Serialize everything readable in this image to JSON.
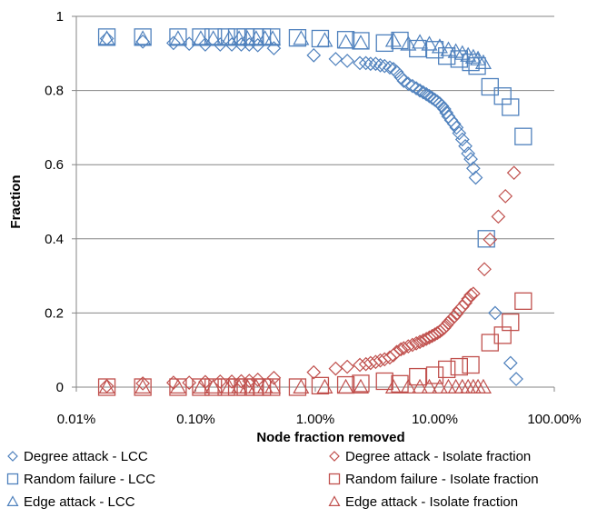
{
  "chart_data": {
    "type": "scatter",
    "xlabel": "Node fraction removed",
    "ylabel": "Fraction",
    "x_scale": "log",
    "xlim": [
      0.0001,
      1
    ],
    "ylim": [
      0,
      1
    ],
    "x_ticks": [
      0.0001,
      0.001,
      0.01,
      0.1,
      1
    ],
    "x_tick_labels": [
      "0.01%",
      "0.10%",
      "1.00%",
      "10.00%",
      "100.00%"
    ],
    "y_ticks": [
      0,
      0.2,
      0.4,
      0.6,
      0.8,
      1
    ],
    "y_tick_labels": [
      "0",
      "0.2",
      "0.4",
      "0.6",
      "0.8",
      "1"
    ],
    "grid": "horizontal",
    "legend_position": "bottom",
    "colors": {
      "lcc": "#4F81BD",
      "isolate": "#C0504D",
      "axis": "#868686",
      "grid": "#868686"
    },
    "series": [
      {
        "name": "Degree attack - LCC",
        "marker": "diamond",
        "color": "#4F81BD",
        "points": [
          [
            0.00018,
            0.94
          ],
          [
            0.00036,
            0.932
          ],
          [
            0.00065,
            0.928
          ],
          [
            0.00088,
            0.926
          ],
          [
            0.0012,
            0.924
          ],
          [
            0.0016,
            0.924
          ],
          [
            0.002,
            0.924
          ],
          [
            0.0024,
            0.924
          ],
          [
            0.0028,
            0.924
          ],
          [
            0.0033,
            0.922
          ],
          [
            0.0045,
            0.914
          ],
          [
            0.0097,
            0.895
          ],
          [
            0.0148,
            0.885
          ],
          [
            0.0185,
            0.88
          ],
          [
            0.0236,
            0.874
          ],
          [
            0.0265,
            0.874
          ],
          [
            0.029,
            0.872
          ],
          [
            0.032,
            0.872
          ],
          [
            0.035,
            0.868
          ],
          [
            0.038,
            0.866
          ],
          [
            0.042,
            0.862
          ],
          [
            0.045,
            0.858
          ],
          [
            0.048,
            0.85
          ],
          [
            0.052,
            0.836
          ],
          [
            0.055,
            0.826
          ],
          [
            0.06,
            0.818
          ],
          [
            0.065,
            0.812
          ],
          [
            0.07,
            0.806
          ],
          [
            0.075,
            0.8
          ],
          [
            0.08,
            0.795
          ],
          [
            0.085,
            0.79
          ],
          [
            0.09,
            0.785
          ],
          [
            0.095,
            0.78
          ],
          [
            0.1,
            0.775
          ],
          [
            0.105,
            0.77
          ],
          [
            0.11,
            0.765
          ],
          [
            0.115,
            0.758
          ],
          [
            0.12,
            0.75
          ],
          [
            0.125,
            0.74
          ],
          [
            0.13,
            0.73
          ],
          [
            0.137,
            0.72
          ],
          [
            0.145,
            0.71
          ],
          [
            0.152,
            0.7
          ],
          [
            0.16,
            0.685
          ],
          [
            0.17,
            0.668
          ],
          [
            0.18,
            0.65
          ],
          [
            0.19,
            0.63
          ],
          [
            0.2,
            0.615
          ],
          [
            0.21,
            0.59
          ],
          [
            0.22,
            0.565
          ],
          [
            0.32,
            0.2
          ],
          [
            0.43,
            0.065
          ],
          [
            0.48,
            0.022
          ]
        ]
      },
      {
        "name": "Random failure - LCC",
        "marker": "square",
        "color": "#4F81BD",
        "points": [
          [
            0.00018,
            0.944
          ],
          [
            0.00036,
            0.944
          ],
          [
            0.00071,
            0.944
          ],
          [
            0.0011,
            0.944
          ],
          [
            0.0014,
            0.944
          ],
          [
            0.0018,
            0.944
          ],
          [
            0.0022,
            0.944
          ],
          [
            0.0026,
            0.944
          ],
          [
            0.0031,
            0.944
          ],
          [
            0.0036,
            0.944
          ],
          [
            0.0043,
            0.944
          ],
          [
            0.0071,
            0.942
          ],
          [
            0.011,
            0.94
          ],
          [
            0.018,
            0.937
          ],
          [
            0.024,
            0.934
          ],
          [
            0.038,
            0.928
          ],
          [
            0.051,
            0.935
          ],
          [
            0.072,
            0.913
          ],
          [
            0.1,
            0.91
          ],
          [
            0.126,
            0.893
          ],
          [
            0.16,
            0.885
          ],
          [
            0.2,
            0.876
          ],
          [
            0.226,
            0.866
          ],
          [
            0.29,
            0.81
          ],
          [
            0.37,
            0.785
          ],
          [
            0.43,
            0.755
          ],
          [
            0.55,
            0.676
          ],
          [
            0.27,
            0.4
          ]
        ]
      },
      {
        "name": "Edge attack - LCC",
        "marker": "triangle",
        "color": "#4F81BD",
        "points": [
          [
            0.00018,
            0.94
          ],
          [
            0.00036,
            0.94
          ],
          [
            0.00071,
            0.94
          ],
          [
            0.0011,
            0.94
          ],
          [
            0.0014,
            0.94
          ],
          [
            0.0019,
            0.94
          ],
          [
            0.0023,
            0.94
          ],
          [
            0.0027,
            0.94
          ],
          [
            0.0032,
            0.94
          ],
          [
            0.0038,
            0.94
          ],
          [
            0.0044,
            0.94
          ],
          [
            0.0076,
            0.94
          ],
          [
            0.012,
            0.935
          ],
          [
            0.018,
            0.93
          ],
          [
            0.024,
            0.928
          ],
          [
            0.045,
            0.935
          ],
          [
            0.06,
            0.925
          ],
          [
            0.075,
            0.93
          ],
          [
            0.09,
            0.925
          ],
          [
            0.11,
            0.918
          ],
          [
            0.13,
            0.91
          ],
          [
            0.15,
            0.905
          ],
          [
            0.17,
            0.9
          ],
          [
            0.19,
            0.895
          ],
          [
            0.21,
            0.89
          ],
          [
            0.23,
            0.885
          ],
          [
            0.255,
            0.875
          ]
        ]
      },
      {
        "name": "Degree attack - Isolate fraction",
        "marker": "diamond",
        "color": "#C0504D",
        "points": [
          [
            0.00018,
            0.003
          ],
          [
            0.00036,
            0.01
          ],
          [
            0.00065,
            0.012
          ],
          [
            0.00088,
            0.012
          ],
          [
            0.0012,
            0.014
          ],
          [
            0.0016,
            0.015
          ],
          [
            0.002,
            0.015
          ],
          [
            0.0024,
            0.016
          ],
          [
            0.0028,
            0.017
          ],
          [
            0.0033,
            0.02
          ],
          [
            0.0045,
            0.025
          ],
          [
            0.0097,
            0.04
          ],
          [
            0.0148,
            0.05
          ],
          [
            0.0185,
            0.055
          ],
          [
            0.0236,
            0.06
          ],
          [
            0.0265,
            0.062
          ],
          [
            0.029,
            0.065
          ],
          [
            0.032,
            0.068
          ],
          [
            0.035,
            0.072
          ],
          [
            0.038,
            0.075
          ],
          [
            0.042,
            0.08
          ],
          [
            0.045,
            0.086
          ],
          [
            0.048,
            0.095
          ],
          [
            0.052,
            0.102
          ],
          [
            0.055,
            0.105
          ],
          [
            0.06,
            0.11
          ],
          [
            0.065,
            0.114
          ],
          [
            0.07,
            0.118
          ],
          [
            0.075,
            0.122
          ],
          [
            0.08,
            0.126
          ],
          [
            0.085,
            0.13
          ],
          [
            0.09,
            0.134
          ],
          [
            0.095,
            0.138
          ],
          [
            0.1,
            0.142
          ],
          [
            0.105,
            0.146
          ],
          [
            0.11,
            0.15
          ],
          [
            0.115,
            0.155
          ],
          [
            0.12,
            0.16
          ],
          [
            0.125,
            0.167
          ],
          [
            0.13,
            0.174
          ],
          [
            0.137,
            0.182
          ],
          [
            0.145,
            0.19
          ],
          [
            0.152,
            0.198
          ],
          [
            0.16,
            0.208
          ],
          [
            0.17,
            0.217
          ],
          [
            0.18,
            0.227
          ],
          [
            0.19,
            0.238
          ],
          [
            0.2,
            0.248
          ],
          [
            0.21,
            0.252
          ],
          [
            0.26,
            0.318
          ],
          [
            0.29,
            0.398
          ],
          [
            0.34,
            0.46
          ],
          [
            0.39,
            0.515
          ],
          [
            0.46,
            0.578
          ]
        ]
      },
      {
        "name": "Random failure - Isolate fraction",
        "marker": "square",
        "color": "#C0504D",
        "points": [
          [
            0.00018,
            0.0
          ],
          [
            0.00036,
            0.0
          ],
          [
            0.00071,
            0.0
          ],
          [
            0.0011,
            0.0
          ],
          [
            0.0014,
            0.0
          ],
          [
            0.0018,
            0.0
          ],
          [
            0.0022,
            0.0
          ],
          [
            0.0026,
            0.0
          ],
          [
            0.0031,
            0.0
          ],
          [
            0.0036,
            0.0
          ],
          [
            0.0043,
            0.0
          ],
          [
            0.0071,
            0.0
          ],
          [
            0.011,
            0.004
          ],
          [
            0.018,
            0.006
          ],
          [
            0.024,
            0.01
          ],
          [
            0.038,
            0.016
          ],
          [
            0.051,
            0.009
          ],
          [
            0.072,
            0.028
          ],
          [
            0.1,
            0.032
          ],
          [
            0.126,
            0.048
          ],
          [
            0.16,
            0.055
          ],
          [
            0.2,
            0.06
          ],
          [
            0.29,
            0.12
          ],
          [
            0.37,
            0.14
          ],
          [
            0.43,
            0.175
          ],
          [
            0.55,
            0.232
          ]
        ]
      },
      {
        "name": "Edge attack - Isolate fraction",
        "marker": "triangle",
        "color": "#C0504D",
        "points": [
          [
            0.00018,
            0.0
          ],
          [
            0.00036,
            0.0
          ],
          [
            0.00071,
            0.0
          ],
          [
            0.0011,
            0.0
          ],
          [
            0.0014,
            0.0
          ],
          [
            0.0019,
            0.0
          ],
          [
            0.0023,
            0.0
          ],
          [
            0.0027,
            0.0
          ],
          [
            0.0032,
            0.0
          ],
          [
            0.0038,
            0.0
          ],
          [
            0.0044,
            0.0
          ],
          [
            0.0076,
            0.0
          ],
          [
            0.012,
            0.0
          ],
          [
            0.018,
            0.0
          ],
          [
            0.024,
            0.0
          ],
          [
            0.045,
            0.0
          ],
          [
            0.06,
            0.0
          ],
          [
            0.075,
            0.0
          ],
          [
            0.09,
            0.0
          ],
          [
            0.11,
            0.0
          ],
          [
            0.13,
            0.0
          ],
          [
            0.15,
            0.0
          ],
          [
            0.17,
            0.0
          ],
          [
            0.19,
            0.0
          ],
          [
            0.21,
            0.0
          ],
          [
            0.23,
            0.0
          ],
          [
            0.255,
            0.0
          ]
        ]
      }
    ]
  }
}
